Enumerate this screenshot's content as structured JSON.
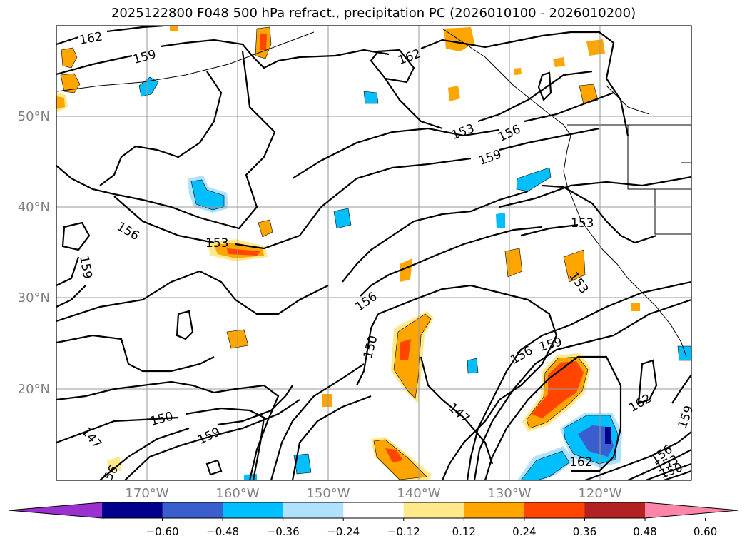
{
  "title": "2025122800 F048 500 hPa refract., precipitation PC (2026010100 - 2026010200)",
  "map": {
    "lon_labels": [
      "170°W",
      "160°W",
      "150°W",
      "140°W",
      "130°W",
      "120°W"
    ],
    "lat_labels": [
      "50°N",
      "40°N",
      "30°N",
      "20°N"
    ],
    "grid": true,
    "contour_labels": [
      "162",
      "159",
      "162",
      "153",
      "156",
      "159",
      "156",
      "153",
      "153",
      "159",
      "153",
      "156",
      "150",
      "147",
      "156",
      "159",
      "150",
      "159",
      "147",
      "56",
      "162",
      "162",
      "159",
      "156",
      "153",
      "150"
    ]
  },
  "colorbar": {
    "ticks": [
      "−0.60",
      "−0.48",
      "−0.36",
      "−0.24",
      "−0.12",
      "0.12",
      "0.24",
      "0.36",
      "0.48",
      "0.60"
    ],
    "colors": [
      "#9b30d0",
      "#00008b",
      "#3a5fcd",
      "#00bfff",
      "#b0e2ff",
      "#ffffff",
      "#ffe98a",
      "#ffa500",
      "#ff4500",
      "#b22222",
      "#ff85a8"
    ]
  }
}
